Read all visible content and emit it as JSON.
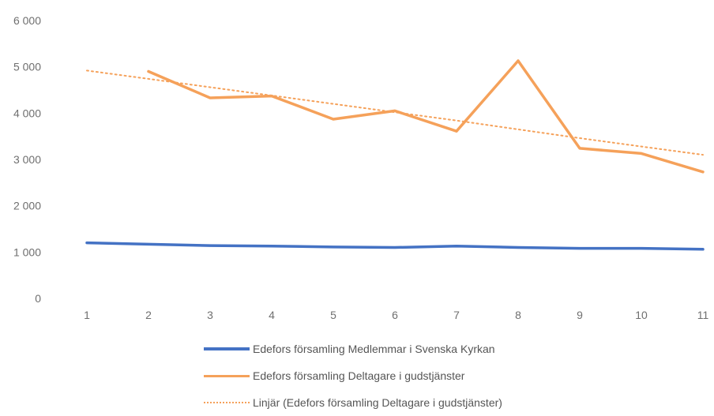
{
  "chart_data": {
    "type": "line",
    "title": "",
    "xlabel": "",
    "ylabel": "",
    "categories": [
      "1",
      "2",
      "3",
      "4",
      "5",
      "6",
      "7",
      "8",
      "9",
      "10",
      "11"
    ],
    "y_ticks": [
      "0",
      "1 000",
      "2 000",
      "3 000",
      "4 000",
      "5 000",
      "6 000"
    ],
    "ylim": [
      0,
      6000
    ],
    "grid": false,
    "legend_position": "bottom",
    "series": [
      {
        "name": "Edefors församling Medlemmar i Svenska Kyrkan",
        "style": "solid",
        "color": "#4472c4",
        "values": [
          1200,
          1170,
          1140,
          1130,
          1110,
          1100,
          1130,
          1100,
          1080,
          1080,
          1060
        ]
      },
      {
        "name": "Edefors församling Deltagare i gudstjänster",
        "style": "solid",
        "color": "#f5a15a",
        "values": [
          null,
          4900,
          4330,
          4370,
          3870,
          4050,
          3610,
          5130,
          3240,
          3130,
          2730
        ]
      },
      {
        "name": "Linjär (Edefors församling Deltagare i gudstjänster)",
        "style": "dotted",
        "color": "#f5a15a",
        "values": [
          4920,
          4740,
          4560,
          4380,
          4200,
          4020,
          3840,
          3650,
          3460,
          3280,
          3100
        ]
      }
    ]
  }
}
